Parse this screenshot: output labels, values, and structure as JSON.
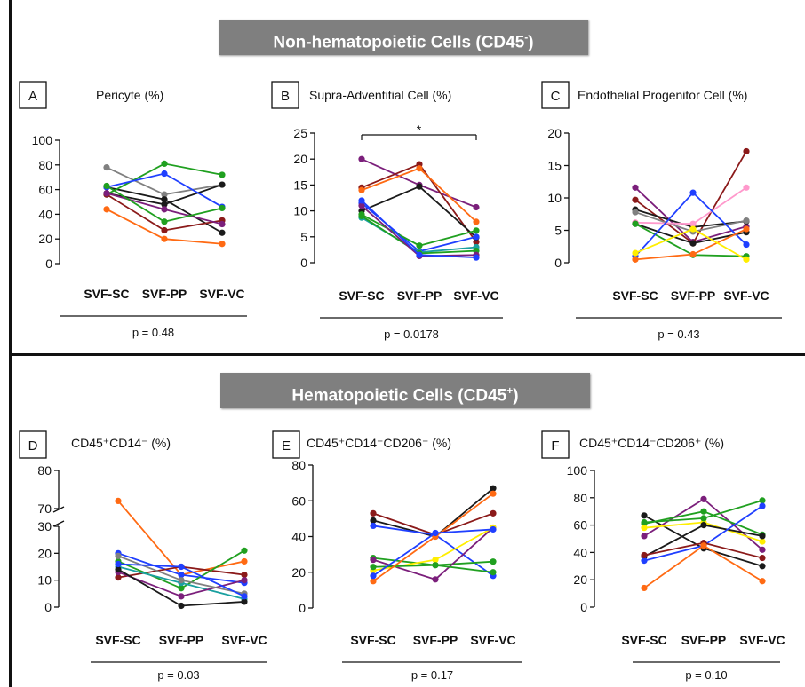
{
  "sections": [
    {
      "title": "Non-hematopoietic Cells (CD45",
      "title_sup": "-",
      "title_end": ")"
    },
    {
      "title": "Hematopoietic Cells (CD45",
      "title_sup": "+",
      "title_end": ")"
    }
  ],
  "series_colors": [
    "#1a1a1a",
    "#8b1a1a",
    "#7b1f7b",
    "#ff6a13",
    "#20a020",
    "#1f3fff",
    "#808080",
    "#ffee00",
    "#ff99cc",
    "#1aa0a0"
  ],
  "chart_data": [
    {
      "panel": "A",
      "type": "line",
      "title": "Pericyte (%)",
      "categories": [
        "SVF-SC",
        "SVF-PP",
        "SVF-VC"
      ],
      "p_label": "p = 0.48",
      "ylim": [
        0,
        100
      ],
      "yticks": [
        0,
        20,
        40,
        60,
        80,
        100
      ],
      "series": [
        {
          "color": "#808080",
          "values": [
            78,
            56,
            64
          ]
        },
        {
          "color": "#1a1a1a",
          "values": [
            62,
            52,
            25
          ]
        },
        {
          "color": "#1a1a1a",
          "values": [
            57,
            48,
            64
          ]
        },
        {
          "color": "#20a020",
          "values": [
            56,
            81,
            72
          ]
        },
        {
          "color": "#1f3fff",
          "values": [
            62,
            73,
            46
          ]
        },
        {
          "color": "#8b1a1a",
          "values": [
            56,
            27,
            35
          ]
        },
        {
          "color": "#7b1f7b",
          "values": [
            57,
            44,
            32
          ]
        },
        {
          "color": "#20a020",
          "values": [
            63,
            34,
            45
          ]
        },
        {
          "color": "#ff6a13",
          "values": [
            44,
            20,
            16
          ]
        }
      ]
    },
    {
      "panel": "B",
      "type": "line",
      "title": "Supra-Adventitial Cell  (%)",
      "categories": [
        "SVF-SC",
        "SVF-PP",
        "SVF-VC"
      ],
      "p_label": "p = 0.0178",
      "annotation": "*",
      "ylim": [
        0,
        25
      ],
      "yticks": [
        0,
        5,
        10,
        15,
        20,
        25
      ],
      "series": [
        {
          "color": "#7b1f7b",
          "values": [
            20,
            15,
            10.7
          ]
        },
        {
          "color": "#8b1a1a",
          "values": [
            14.5,
            19,
            4
          ]
        },
        {
          "color": "#ff6a13",
          "values": [
            14,
            18.2,
            7.9
          ]
        },
        {
          "color": "#1a1a1a",
          "values": [
            10,
            14.7,
            4.9
          ]
        },
        {
          "color": "#1f3fff",
          "values": [
            11.5,
            2.2,
            5
          ]
        },
        {
          "color": "#20a020",
          "values": [
            9.3,
            3.3,
            6.2
          ]
        },
        {
          "color": "#1aa0a0",
          "values": [
            8.7,
            2,
            3
          ]
        },
        {
          "color": "#20a020",
          "values": [
            9,
            1.8,
            2.3
          ]
        },
        {
          "color": "#7b1f7b",
          "values": [
            11,
            1.3,
            1.5
          ]
        },
        {
          "color": "#1f3fff",
          "values": [
            12,
            1.5,
            1
          ]
        }
      ]
    },
    {
      "panel": "C",
      "type": "line",
      "title": "Endothelial Progenitor Cell (%)",
      "categories": [
        "SVF-SC",
        "SVF-PP",
        "SVF-VC"
      ],
      "p_label": "p = 0.43",
      "ylim": [
        0,
        20
      ],
      "yticks": [
        0,
        5,
        10,
        15,
        20
      ],
      "series": [
        {
          "color": "#7b1f7b",
          "values": [
            11.6,
            3.2,
            5.6
          ]
        },
        {
          "color": "#8b1a1a",
          "values": [
            9.7,
            3,
            17.2
          ]
        },
        {
          "color": "#1a1a1a",
          "values": [
            8.2,
            5.5,
            6.4
          ]
        },
        {
          "color": "#808080",
          "values": [
            7.8,
            4.8,
            6.5
          ]
        },
        {
          "color": "#ff99cc",
          "values": [
            6.2,
            6,
            11.6
          ]
        },
        {
          "color": "#1a1a1a",
          "values": [
            6,
            3,
            4.7
          ]
        },
        {
          "color": "#20a020",
          "values": [
            6,
            1.2,
            1
          ]
        },
        {
          "color": "#1f3fff",
          "values": [
            1,
            10.8,
            2.8
          ]
        },
        {
          "color": "#ff6a13",
          "values": [
            0.5,
            1.3,
            5.2
          ]
        },
        {
          "color": "#ffee00",
          "values": [
            1.5,
            5.2,
            0.5
          ]
        }
      ]
    },
    {
      "panel": "D",
      "type": "line",
      "title": "CD45⁺CD14⁻ (%)",
      "categories": [
        "SVF-SC",
        "SVF-PP",
        "SVF-VC"
      ],
      "p_label": "p = 0.03",
      "axis_break": {
        "lower": [
          0,
          30
        ],
        "upper": [
          70,
          80
        ]
      },
      "yticks": [
        0,
        10,
        20,
        30,
        70,
        80
      ],
      "series": [
        {
          "color": "#ff6a13",
          "values": [
            72,
            12,
            17
          ]
        },
        {
          "color": "#1f3fff",
          "values": [
            20,
            12,
            9
          ]
        },
        {
          "color": "#8b1a1a",
          "values": [
            11,
            15,
            12
          ]
        },
        {
          "color": "#20a020",
          "values": [
            17,
            7,
            21
          ]
        },
        {
          "color": "#1aa0a0",
          "values": [
            15,
            9,
            3
          ]
        },
        {
          "color": "#7b1f7b",
          "values": [
            13,
            4,
            10
          ]
        },
        {
          "color": "#1a1a1a",
          "values": [
            14,
            0.5,
            2
          ]
        },
        {
          "color": "#808080",
          "values": [
            19,
            10,
            5
          ]
        },
        {
          "color": "#1f3fff",
          "values": [
            16,
            15,
            4
          ]
        }
      ]
    },
    {
      "panel": "E",
      "type": "line",
      "title": "CD45⁺CD14⁻CD206⁻ (%)",
      "categories": [
        "SVF-SC",
        "SVF-PP",
        "SVF-VC"
      ],
      "p_label": "p = 0.17",
      "ylim": [
        0,
        80
      ],
      "yticks": [
        0,
        20,
        40,
        60,
        80
      ],
      "series": [
        {
          "color": "#8b1a1a",
          "values": [
            53,
            41,
            53
          ]
        },
        {
          "color": "#1a1a1a",
          "values": [
            49,
            40,
            67
          ]
        },
        {
          "color": "#1f3fff",
          "values": [
            46,
            41,
            18
          ]
        },
        {
          "color": "#20a020",
          "values": [
            28,
            24,
            26
          ]
        },
        {
          "color": "#7b1f7b",
          "values": [
            27,
            16,
            45
          ]
        },
        {
          "color": "#ffee00",
          "values": [
            21,
            27,
            45
          ]
        },
        {
          "color": "#20a020",
          "values": [
            23,
            24,
            20
          ]
        },
        {
          "color": "#ff6a13",
          "values": [
            15,
            40,
            64
          ]
        },
        {
          "color": "#1f3fff",
          "values": [
            18,
            42,
            44
          ]
        }
      ]
    },
    {
      "panel": "F",
      "type": "line",
      "title": "CD45⁺CD14⁻CD206⁺ (%)",
      "categories": [
        "SVF-SC",
        "SVF-PP",
        "SVF-VC"
      ],
      "p_label": "p = 0.10",
      "ylim": [
        0,
        100
      ],
      "yticks": [
        0,
        20,
        40,
        60,
        80,
        100
      ],
      "series": [
        {
          "color": "#1a1a1a",
          "values": [
            67,
            43,
            30
          ]
        },
        {
          "color": "#7b1f7b",
          "values": [
            52,
            79,
            42
          ]
        },
        {
          "color": "#20a020",
          "values": [
            61,
            70,
            53
          ]
        },
        {
          "color": "#ffee00",
          "values": [
            58,
            62,
            48
          ]
        },
        {
          "color": "#20a020",
          "values": [
            62,
            65,
            78
          ]
        },
        {
          "color": "#1a1a1a",
          "values": [
            37,
            60,
            52
          ]
        },
        {
          "color": "#1f3fff",
          "values": [
            34,
            45,
            74
          ]
        },
        {
          "color": "#8b1a1a",
          "values": [
            38,
            47,
            36
          ]
        },
        {
          "color": "#ff6a13",
          "values": [
            14,
            45,
            19
          ]
        }
      ]
    }
  ]
}
